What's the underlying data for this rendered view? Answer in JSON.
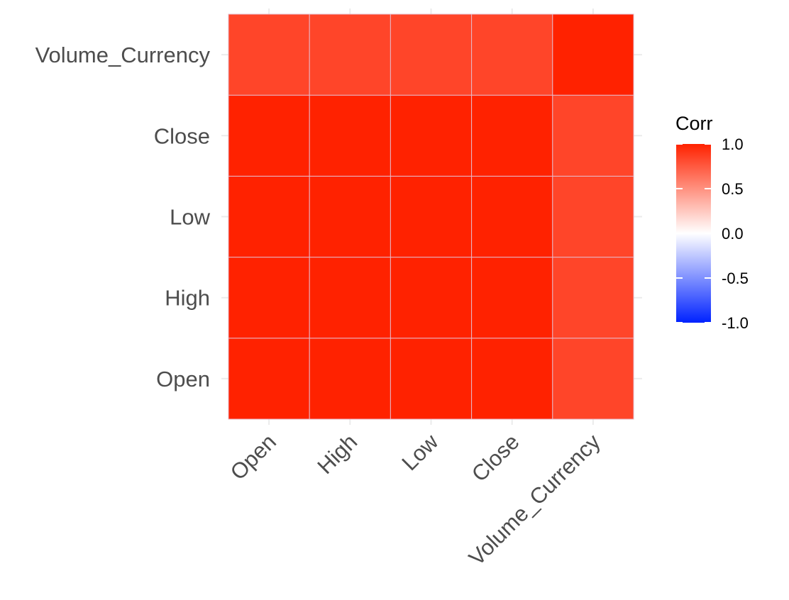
{
  "chart_data": {
    "type": "heatmap",
    "title": "",
    "xlabel": "",
    "ylabel": "",
    "x_categories": [
      "Open",
      "High",
      "Low",
      "Close",
      "Volume_Currency"
    ],
    "y_categories": [
      "Open",
      "High",
      "Low",
      "Close",
      "Volume_Currency"
    ],
    "values": [
      [
        1.0,
        1.0,
        1.0,
        1.0,
        0.84
      ],
      [
        1.0,
        1.0,
        1.0,
        1.0,
        0.84
      ],
      [
        1.0,
        1.0,
        1.0,
        1.0,
        0.84
      ],
      [
        1.0,
        1.0,
        1.0,
        1.0,
        0.84
      ],
      [
        0.84,
        0.84,
        0.84,
        0.84,
        1.0
      ]
    ],
    "legend": {
      "title": "Corr",
      "placement": "right",
      "range": [
        -1,
        1
      ],
      "ticks": [
        {
          "value": 1.0,
          "label": "1.0"
        },
        {
          "value": 0.5,
          "label": "0.5"
        },
        {
          "value": 0.0,
          "label": "0.0"
        },
        {
          "value": -0.5,
          "label": "-0.5"
        },
        {
          "value": -1.0,
          "label": "-1.0"
        }
      ],
      "colors": {
        "high": "#ff2200",
        "mid": "#ffffff",
        "low": "#0022ff"
      }
    },
    "grid": true,
    "x_tick_rotation": "45deg"
  }
}
